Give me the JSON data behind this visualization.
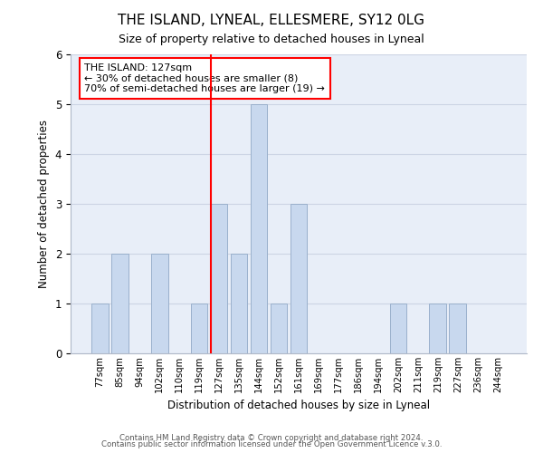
{
  "title": "THE ISLAND, LYNEAL, ELLESMERE, SY12 0LG",
  "subtitle": "Size of property relative to detached houses in Lyneal",
  "xlabel": "Distribution of detached houses by size in Lyneal",
  "ylabel": "Number of detached properties",
  "bar_color": "#c8d8ee",
  "bar_edge_color": "#9ab0cc",
  "categories": [
    "77sqm",
    "85sqm",
    "94sqm",
    "102sqm",
    "110sqm",
    "119sqm",
    "127sqm",
    "135sqm",
    "144sqm",
    "152sqm",
    "161sqm",
    "169sqm",
    "177sqm",
    "186sqm",
    "194sqm",
    "202sqm",
    "211sqm",
    "219sqm",
    "227sqm",
    "236sqm",
    "244sqm"
  ],
  "values": [
    1,
    2,
    0,
    2,
    0,
    1,
    3,
    2,
    5,
    1,
    3,
    0,
    0,
    0,
    0,
    1,
    0,
    1,
    1,
    0,
    0
  ],
  "redline_index": 6,
  "annotation_title": "THE ISLAND: 127sqm",
  "annotation_line1": "← 30% of detached houses are smaller (8)",
  "annotation_line2": "70% of semi-detached houses are larger (19) →",
  "ylim": [
    0,
    6
  ],
  "yticks": [
    0,
    1,
    2,
    3,
    4,
    5,
    6
  ],
  "grid_color": "#ccd4e4",
  "background_color": "#e8eef8",
  "footer1": "Contains HM Land Registry data © Crown copyright and database right 2024.",
  "footer2": "Contains public sector information licensed under the Open Government Licence v.3.0."
}
